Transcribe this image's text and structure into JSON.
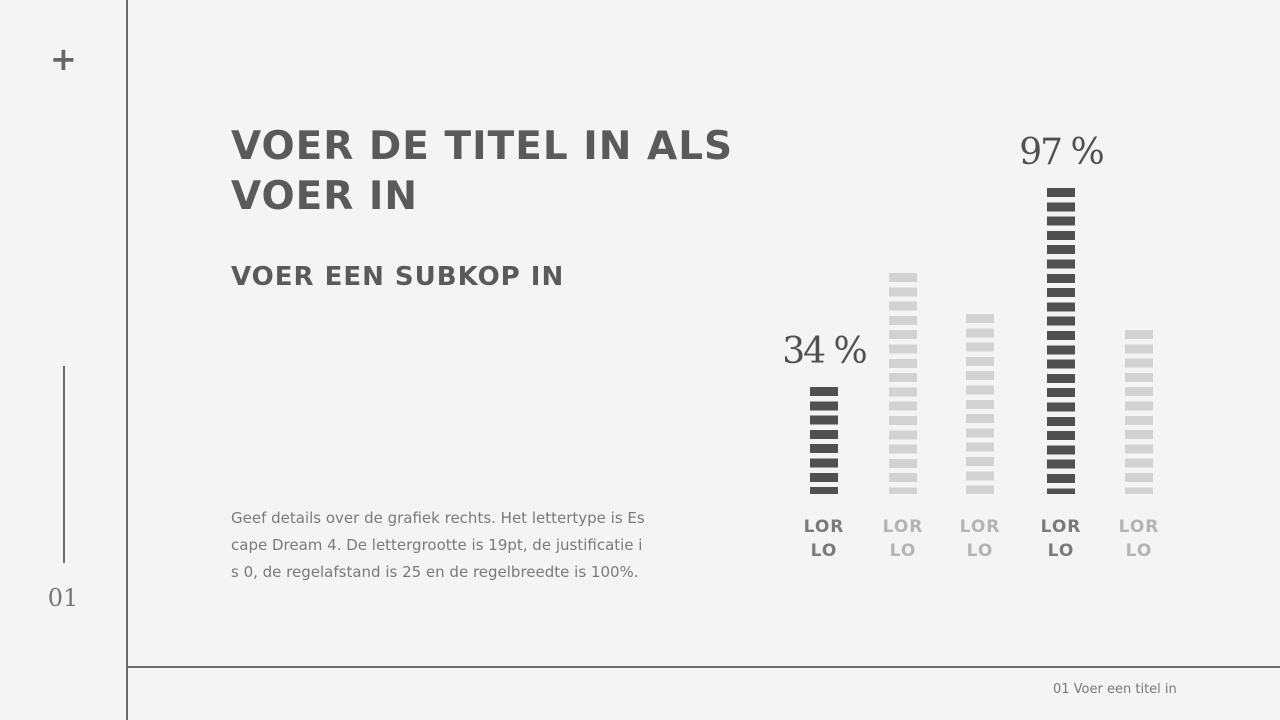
{
  "slide_number": "01",
  "title": "VOER DE TITEL IN ALS VOER IN",
  "subtitle": "VOER EEN SUBKOP IN",
  "body": "Geef details over de grafiek rechts. Het lettertype is Escape Dream 4. De lettergrootte is 19pt, de justificatie is 0, de regelafstand is 25 en de regelbreedte is 100%.",
  "footer": "01 Voer een titel in",
  "chart_data": {
    "type": "bar",
    "categories": [
      "LOR LO",
      "LOR LO",
      "LOR LO",
      "LOR LO",
      "LOR LO"
    ],
    "values": [
      34,
      70,
      57,
      97,
      52
    ],
    "value_labels": [
      "34 %",
      null,
      null,
      "97 %",
      null
    ],
    "colors": [
      "#505050",
      "#d2d2d2",
      "#d2d2d2",
      "#505050",
      "#d2d2d2"
    ],
    "label_colors": [
      "#7a7a7a",
      "#b4b4b4",
      "#b4b4b4",
      "#7a7a7a",
      "#b4b4b4"
    ],
    "ylim": [
      0,
      100
    ]
  }
}
